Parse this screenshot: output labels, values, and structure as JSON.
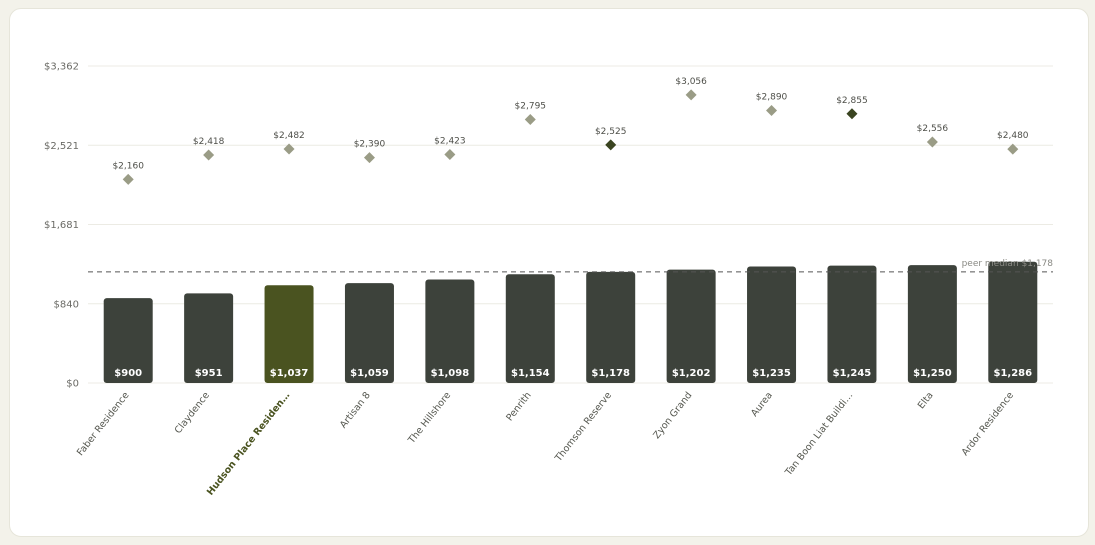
{
  "chart_data": {
    "type": "bar",
    "title": "",
    "categories": [
      "Faber Residence",
      "Claydence",
      "Hudson Place Residen…",
      "Artisan 8",
      "The Hillshore",
      "Penrith",
      "Thomson Reserve",
      "Zyon Grand",
      "Aurea",
      "Tan Boon Liat Buildi…",
      "Elta",
      "Ardor Residence"
    ],
    "highlight_index": 2,
    "series": [
      {
        "type": "bar",
        "values": [
          900,
          951,
          1037,
          1059,
          1098,
          1154,
          1178,
          1202,
          1235,
          1245,
          1250,
          1286
        ],
        "labels": [
          "$900",
          "$951",
          "$1,037",
          "$1,059",
          "$1,098",
          "$1,154",
          "$1,178",
          "$1,202",
          "$1,235",
          "$1,245",
          "$1,250",
          "$1,286"
        ]
      },
      {
        "type": "scatter",
        "marker": "diamond",
        "values": [
          2160,
          2418,
          2482,
          2390,
          2423,
          2795,
          2525,
          3056,
          2890,
          2855,
          2556,
          2480
        ],
        "labels": [
          "$2,160",
          "$2,418",
          "$2,482",
          "$2,390",
          "$2,423",
          "$2,795",
          "$2,525",
          "$3,056",
          "$2,890",
          "$2,855",
          "$2,556",
          "$2,480"
        ],
        "dark_indices": [
          6,
          9
        ]
      }
    ],
    "y_ticks": [
      0,
      840,
      1681,
      2521,
      3362
    ],
    "y_tick_labels": [
      "$0",
      "$840",
      "$1,681",
      "$2,521",
      "$3,362"
    ],
    "ylim": [
      0,
      3362
    ],
    "reference_line": {
      "value": 1178,
      "label": "peer median $1,178",
      "style": "dashed"
    },
    "grid": true,
    "colors": {
      "bar": "#3d423b",
      "bar_highlight": "#4a5320",
      "diamond": "#9a9c86",
      "diamond_dark": "#3a4420",
      "grid": "#ecebe4",
      "reference": "#555555"
    }
  }
}
